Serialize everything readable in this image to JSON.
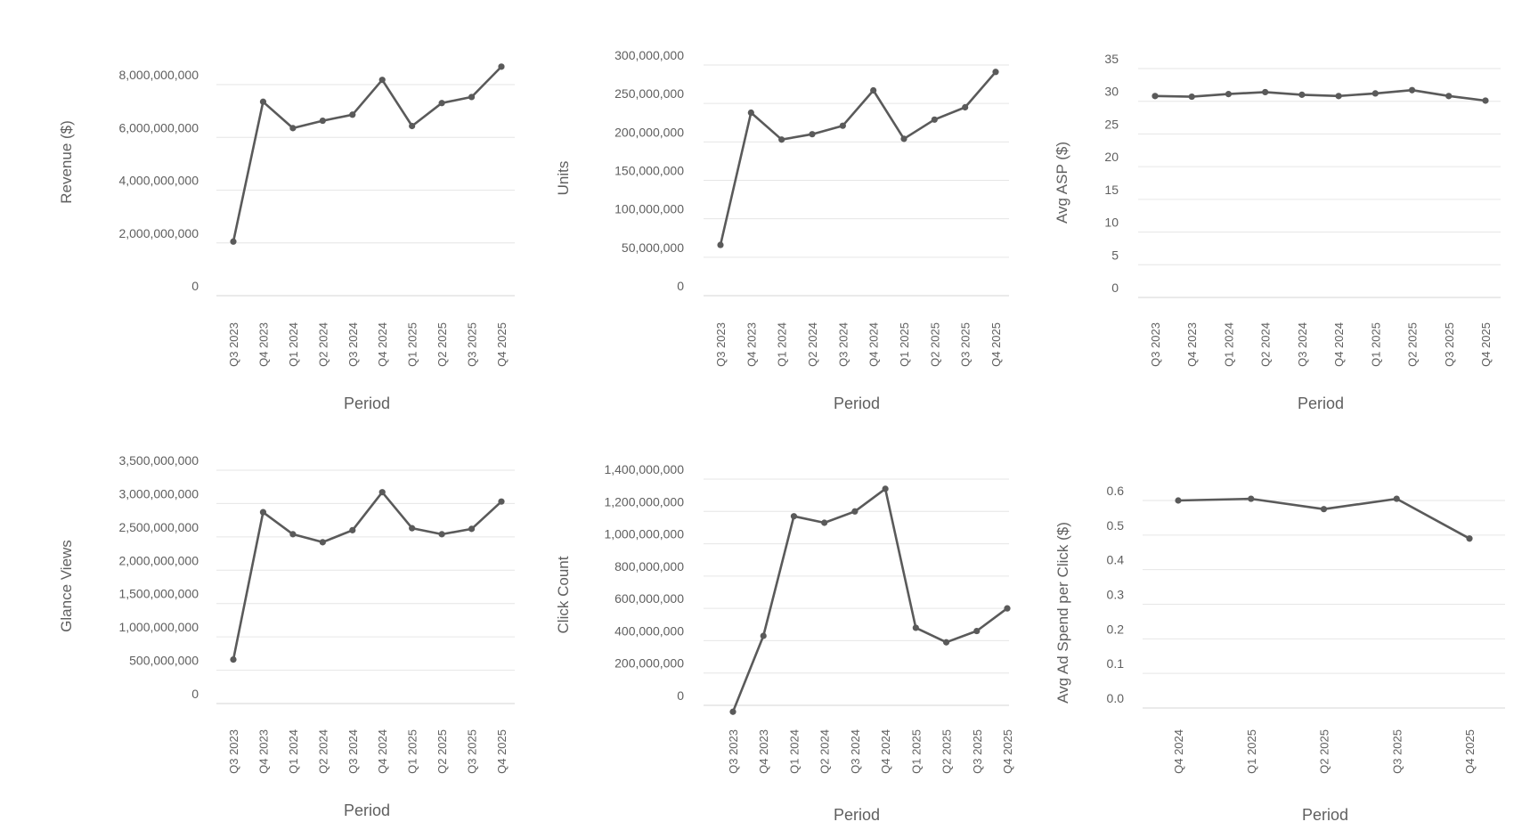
{
  "chart_data": [
    {
      "type": "line",
      "ylabel": "Revenue ($)",
      "xlabel": "Period",
      "ylim": [
        0,
        8000000000
      ],
      "yticks": [
        "0",
        "2,000,000,000",
        "4,000,000,000",
        "6,000,000,000",
        "8,000,000,000"
      ],
      "categories": [
        "Q3 2023",
        "Q4 2023",
        "Q1 2024",
        "Q2 2024",
        "Q3 2024",
        "Q4 2024",
        "Q1 2025",
        "Q2 2025",
        "Q3 2025",
        "Q4 2025"
      ],
      "values": [
        2050000000,
        7350000000,
        6350000000,
        6630000000,
        6860000000,
        8180000000,
        6430000000,
        7300000000,
        7530000000,
        8680000000
      ],
      "grid": true,
      "color": "#5a5a5a"
    },
    {
      "type": "line",
      "ylabel": "Units",
      "xlabel": "Period",
      "ylim": [
        0,
        300000000
      ],
      "yticks": [
        "0",
        "50,000,000",
        "100,000,000",
        "150,000,000",
        "200,000,000",
        "250,000,000",
        "300,000,000"
      ],
      "categories": [
        "Q3 2023",
        "Q4 2023",
        "Q1 2024",
        "Q2 2024",
        "Q3 2024",
        "Q4 2024",
        "Q1 2025",
        "Q2 2025",
        "Q3 2025",
        "Q4 2025"
      ],
      "values": [
        66000000,
        238000000,
        203000000,
        210000000,
        221000000,
        267000000,
        204000000,
        229000000,
        245000000,
        291000000
      ],
      "grid": true,
      "color": "#5a5a5a"
    },
    {
      "type": "line",
      "ylabel": "Avg ASP ($)",
      "xlabel": "Period",
      "ylim": [
        0,
        35
      ],
      "yticks": [
        "0",
        "5",
        "10",
        "15",
        "20",
        "25",
        "30",
        "35"
      ],
      "categories": [
        "Q3 2023",
        "Q4 2023",
        "Q1 2024",
        "Q2 2024",
        "Q3 2024",
        "Q4 2024",
        "Q1 2025",
        "Q2 2025",
        "Q3 2025",
        "Q4 2025"
      ],
      "values": [
        30.8,
        30.7,
        31.1,
        31.4,
        31.0,
        30.8,
        31.2,
        31.7,
        30.8,
        30.1
      ],
      "grid": true,
      "color": "#5a5a5a"
    },
    {
      "type": "line",
      "ylabel": "Glance Views",
      "xlabel": "Period",
      "ylim": [
        0,
        3500000000
      ],
      "yticks": [
        "0",
        "500,000,000",
        "1,000,000,000",
        "1,500,000,000",
        "2,000,000,000",
        "2,500,000,000",
        "3,000,000,000",
        "3,500,000,000"
      ],
      "categories": [
        "Q3 2023",
        "Q4 2023",
        "Q1 2024",
        "Q2 2024",
        "Q3 2024",
        "Q4 2024",
        "Q1 2025",
        "Q2 2025",
        "Q3 2025",
        "Q4 2025"
      ],
      "values": [
        660000000,
        2870000000,
        2540000000,
        2420000000,
        2600000000,
        3170000000,
        2630000000,
        2540000000,
        2620000000,
        3030000000
      ],
      "grid": true,
      "color": "#5a5a5a"
    },
    {
      "type": "line",
      "ylabel": "Click Count",
      "xlabel": "Period",
      "ylim": [
        0,
        1400000000
      ],
      "yticks": [
        "0",
        "200,000,000",
        "400,000,000",
        "600,000,000",
        "800,000,000",
        "1,000,000,000",
        "1,200,000,000",
        "1,400,000,000"
      ],
      "categories": [
        "Q3 2023",
        "Q4 2023",
        "Q1 2024",
        "Q2 2024",
        "Q3 2024",
        "Q4 2024",
        "Q1 2025",
        "Q2 2025",
        "Q3 2025",
        "Q4 2025"
      ],
      "values": [
        -40000000,
        430000000,
        1170000000,
        1130000000,
        1200000000,
        1340000000,
        480000000,
        390000000,
        460000000,
        600000000
      ],
      "grid": true,
      "color": "#5a5a5a"
    },
    {
      "type": "line",
      "ylabel": "Avg Ad Spend per Click ($)",
      "xlabel": "Period",
      "ylim": [
        0,
        0.6
      ],
      "yticks": [
        "0.0",
        "0.1",
        "0.2",
        "0.3",
        "0.4",
        "0.5",
        "0.6"
      ],
      "categories": [
        "Q4 2024",
        "Q1 2025",
        "Q2 2025",
        "Q3 2025",
        "Q4 2025"
      ],
      "values": [
        0.6,
        0.605,
        0.575,
        0.605,
        0.49
      ],
      "grid": true,
      "color": "#5a5a5a"
    }
  ]
}
